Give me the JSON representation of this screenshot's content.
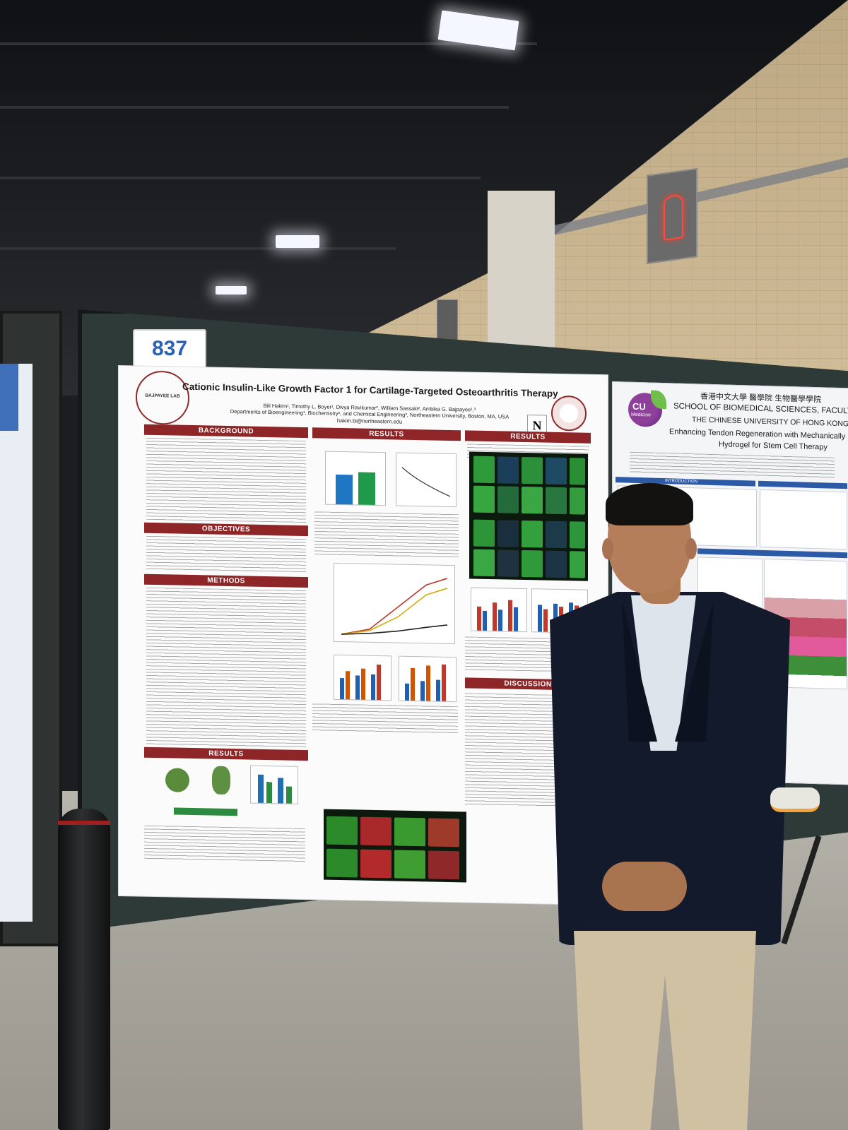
{
  "board_number": "837",
  "poster": {
    "title": "Cationic Insulin-Like Growth Factor 1 for Cartilage-Targeted Osteoarthritis Therapy",
    "authors": "Bill Hakim¹, Timothy L. Boyer¹, Divya Ravikumar², William Sassaki², Ambika G. Bajpayee¹,³",
    "affiliations": "Departments of Bioengineering¹, Biochemistry², and Chemical Engineering³, Northeastern University, Boston, MA, USA",
    "email": "hakim.bi@northeastern.edu",
    "lab_logo": "BAJPAYEE LAB",
    "sections": {
      "background": "BACKGROUND",
      "objectives": "OBJECTIVES",
      "methods": "METHODS",
      "results": "RESULTS",
      "discussion": "DISCUSSION"
    }
  },
  "right_poster": {
    "logo_text": "CU",
    "logo_subtext": "Medicine",
    "chinese_title": "香港中文大學  醫學院  生物醫學學院",
    "school": "SCHOOL OF BIOMEDICAL SCIENCES, FACULTY OF MEDICINE",
    "university": "THE CHINESE UNIVERSITY OF HONG KONG",
    "title_line1": "Enhancing Tendon Regeneration with Mechanically Reinforced",
    "title_line2": "Hydrogel for Stem Cell Therapy",
    "introduction": "INTRODUCTION"
  },
  "colors": {
    "section_header": "#8e2628",
    "board_number": "#2c62b5",
    "right_poster_accent": "#2d5aa6"
  }
}
